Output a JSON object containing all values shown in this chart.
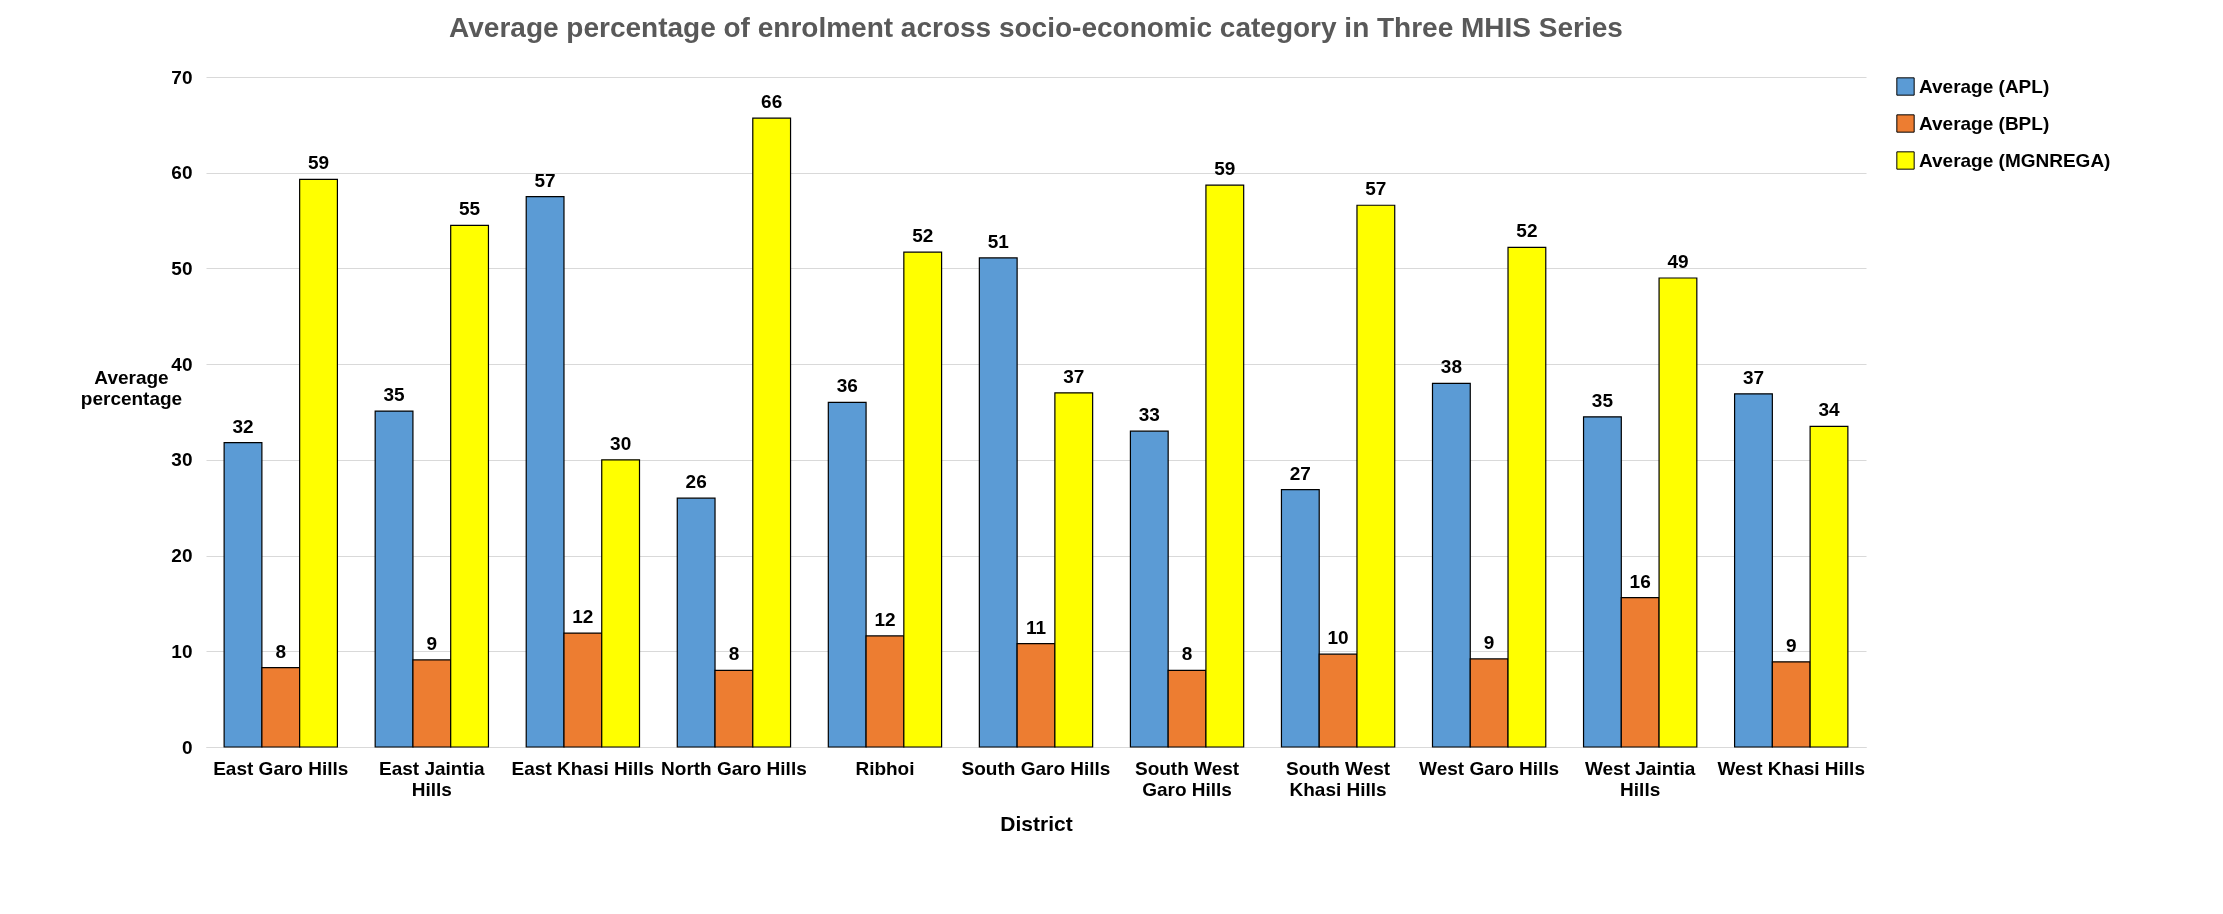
{
  "chart_data": {
    "type": "bar",
    "title": "Average percentage of enrolment across socio-economic category in Three MHIS Series",
    "xlabel": "District",
    "ylabel": "Average percentage",
    "categories": [
      "East Garo Hills",
      "East Jaintia Hills",
      "East Khasi Hills",
      "North Garo Hills",
      "Ribhoi",
      "South Garo Hills",
      "South West Garo Hills",
      "South West Khasi Hills",
      "West Garo Hills",
      "West Jaintia Hills",
      "West Khasi Hills"
    ],
    "series": [
      {
        "name": "Average (APL)",
        "color": "#5b9bd5",
        "values": [
          31.8,
          35.1,
          57.5,
          26.0,
          36.0,
          51.1,
          33.0,
          26.9,
          38.0,
          34.5,
          36.9
        ],
        "value_labels": [
          "32",
          "35",
          "57",
          "26",
          "36",
          "51",
          "33",
          "27",
          "38",
          "35",
          "37"
        ]
      },
      {
        "name": "Average (BPL)",
        "color": "#ed7d31",
        "values": [
          8.3,
          9.1,
          11.9,
          8.0,
          11.6,
          10.8,
          8.0,
          9.7,
          9.2,
          15.6,
          8.9
        ],
        "value_labels": [
          "8",
          "9",
          "12",
          "8",
          "12",
          "11",
          "8",
          "10",
          "9",
          "16",
          "9"
        ]
      },
      {
        "name": "Average (MGNREGA)",
        "color": "#ffff00",
        "values": [
          59.3,
          54.5,
          30.0,
          65.7,
          51.7,
          37.0,
          58.7,
          56.6,
          52.2,
          49.0,
          33.5
        ],
        "value_labels": [
          "59",
          "55",
          "30",
          "66",
          "52",
          "37",
          "59",
          "57",
          "52",
          "49",
          "34"
        ]
      }
    ],
    "ylim": [
      0,
      70
    ],
    "yticks": [
      0,
      10,
      20,
      30,
      40,
      50,
      60,
      70
    ],
    "grid": "y",
    "legend": "right"
  }
}
